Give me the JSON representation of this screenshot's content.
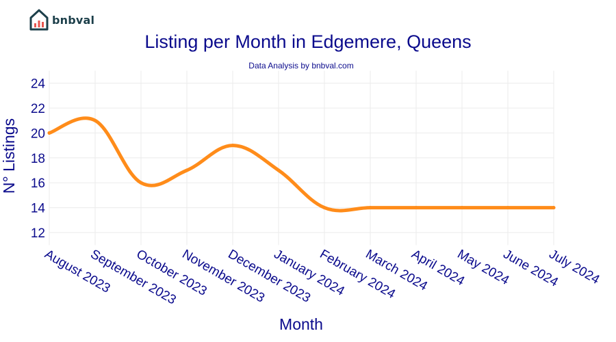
{
  "brand": {
    "name": "bnbval",
    "logo_icon": "house-chart-icon"
  },
  "chart_data": {
    "type": "line",
    "title": "Listing per Month in Edgemere, Queens",
    "subtitle": "Data Analysis by bnbval.com",
    "xlabel": "Month",
    "ylabel": "N° Listings",
    "categories": [
      "August 2023",
      "September 2023",
      "October 2023",
      "November 2023",
      "December 2023",
      "January 2024",
      "February 2024",
      "March 2024",
      "April 2024",
      "May 2024",
      "June 2024",
      "July 2024"
    ],
    "series": [
      {
        "values": [
          20,
          21,
          16,
          17,
          19,
          17,
          14,
          14,
          14,
          14,
          14,
          14
        ]
      }
    ],
    "ylim": [
      11,
      25
    ],
    "yticks": [
      12,
      14,
      16,
      18,
      20,
      22,
      24
    ],
    "grid": true,
    "line_color": "#ff8c1a",
    "text_color": "#0a0a8c",
    "grid_color": "#ebebeb"
  }
}
